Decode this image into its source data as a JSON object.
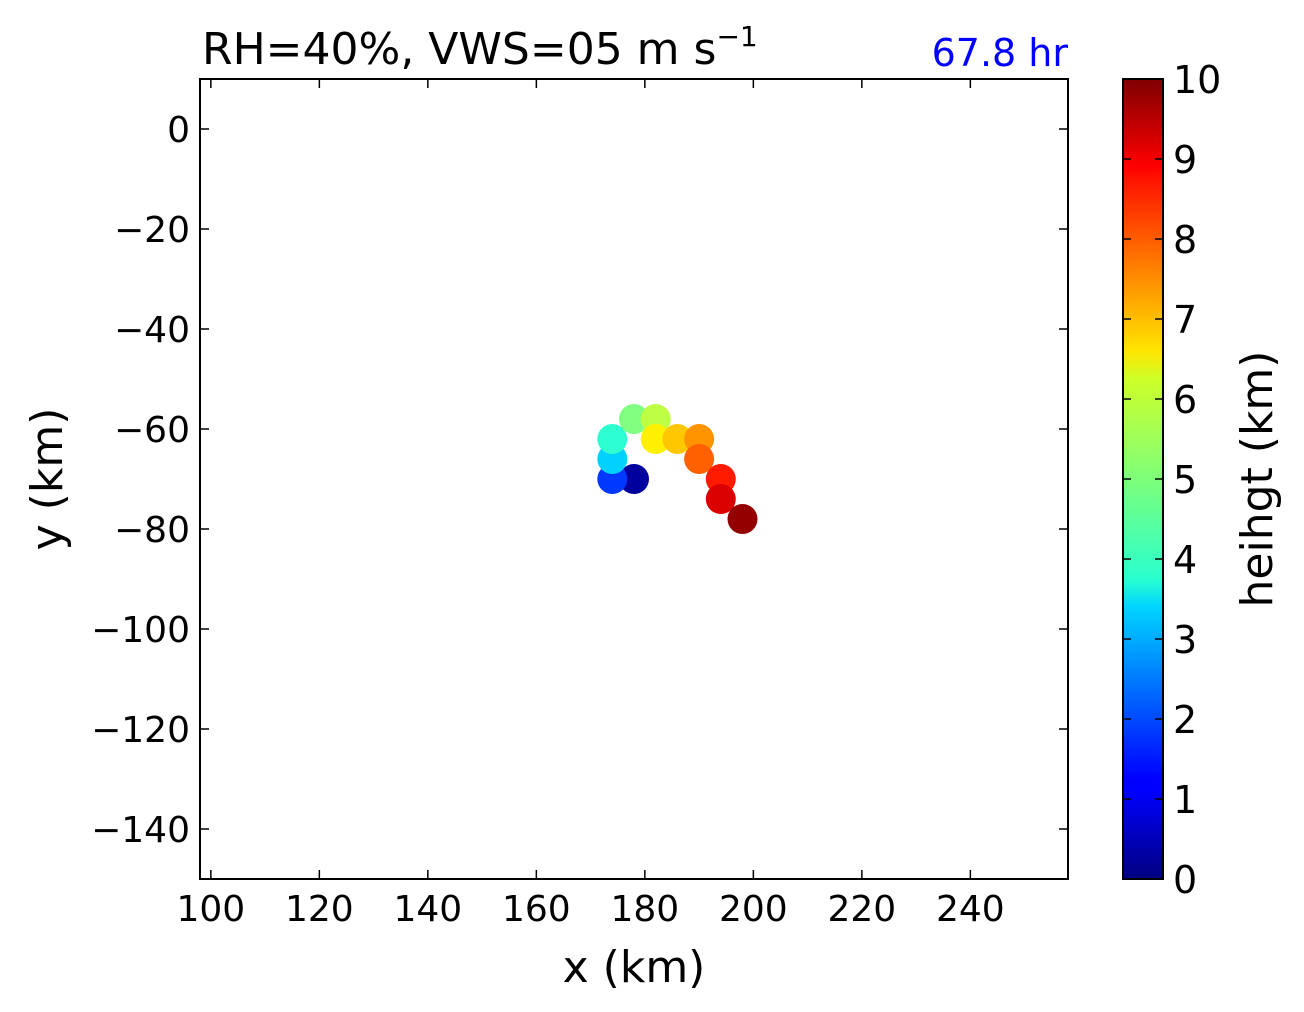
{
  "chart_data": {
    "type": "scatter",
    "title": "RH=40%, VWS=05 m s",
    "title_superscript": "−1",
    "annotation": "67.8 hr",
    "annotation_color": "#0000ff",
    "xlabel": "x (km)",
    "ylabel": "y (km)",
    "xlim": [
      98,
      258
    ],
    "ylim": [
      -150,
      10
    ],
    "xticks": [
      100,
      120,
      140,
      160,
      180,
      200,
      220,
      240
    ],
    "yticks": [
      0,
      -20,
      -40,
      -60,
      -80,
      -100,
      -120,
      -140
    ],
    "grid": false,
    "colorbar": {
      "label": "heihgt (km)",
      "range": [
        0,
        10
      ],
      "ticks": [
        0,
        1,
        2,
        3,
        4,
        5,
        6,
        7,
        8,
        9,
        10
      ],
      "colormap": "jet"
    },
    "points": [
      {
        "x": 178,
        "y": -70,
        "height": 0.3
      },
      {
        "x": 174,
        "y": -70,
        "height": 1.8
      },
      {
        "x": 174,
        "y": -66,
        "height": 3.3
      },
      {
        "x": 174,
        "y": -62,
        "height": 4.2
      },
      {
        "x": 178,
        "y": -58,
        "height": 5.0
      },
      {
        "x": 182,
        "y": -58,
        "height": 5.6
      },
      {
        "x": 182,
        "y": -62,
        "height": 6.4
      },
      {
        "x": 186,
        "y": -62,
        "height": 6.8
      },
      {
        "x": 190,
        "y": -62,
        "height": 7.3
      },
      {
        "x": 190,
        "y": -66,
        "height": 7.8
      },
      {
        "x": 194,
        "y": -70,
        "height": 8.5
      },
      {
        "x": 194,
        "y": -74,
        "height": 9.1
      },
      {
        "x": 198,
        "y": -78,
        "height": 9.8
      }
    ]
  }
}
